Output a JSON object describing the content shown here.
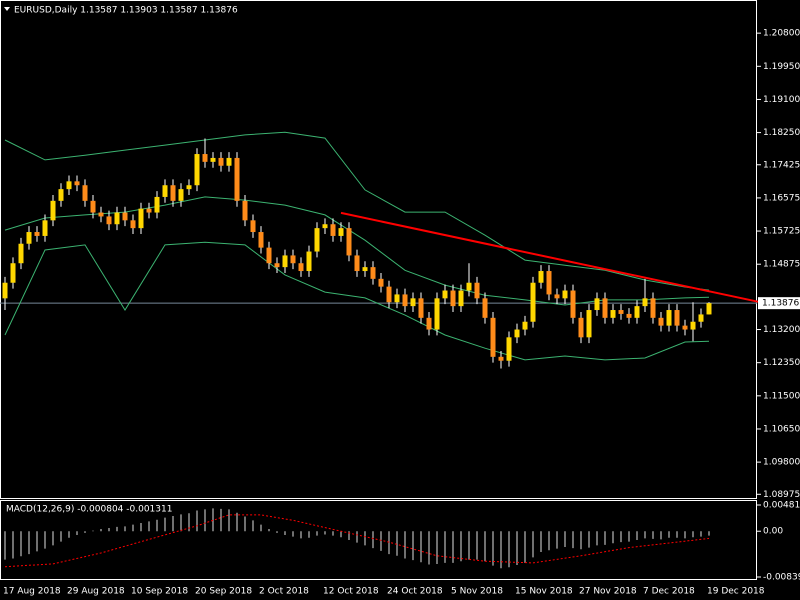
{
  "chart_data": {
    "type": "candlestick",
    "title": "EURUSD,Daily  1.13587 1.13903 1.13587 1.13876",
    "categories": [
      "17 Aug 2018",
      null,
      null,
      null,
      null,
      null,
      null,
      null,
      "29 Aug 2018",
      null,
      null,
      null,
      null,
      null,
      null,
      null,
      "10 Sep 2018",
      null,
      null,
      null,
      null,
      null,
      null,
      null,
      "20 Sep 2018",
      null,
      null,
      null,
      null,
      null,
      null,
      null,
      "2 Oct 2018",
      null,
      null,
      null,
      null,
      null,
      null,
      null,
      "12 Oct 2018",
      null,
      null,
      null,
      null,
      null,
      null,
      null,
      "24 Oct 2018",
      null,
      null,
      null,
      null,
      null,
      null,
      null,
      "5 Nov 2018",
      null,
      null,
      null,
      null,
      null,
      null,
      null,
      "15 Nov 2018",
      null,
      null,
      null,
      null,
      null,
      null,
      null,
      "27 Nov 2018",
      null,
      null,
      null,
      null,
      null,
      null,
      null,
      "7 Dec 2018",
      null,
      null,
      null,
      null,
      null,
      null,
      null,
      "19 Dec 2018"
    ],
    "open": [
      1.14,
      1.144,
      1.149,
      1.154,
      1.157,
      1.156,
      1.16,
      1.165,
      1.168,
      1.17,
      1.169,
      1.165,
      1.162,
      1.161,
      1.159,
      1.162,
      1.16,
      1.158,
      1.163,
      1.162,
      1.166,
      1.169,
      1.165,
      1.168,
      1.169,
      1.177,
      1.175,
      1.176,
      1.174,
      1.176,
      1.165,
      1.16,
      1.157,
      1.153,
      1.149,
      1.148,
      1.151,
      1.149,
      1.147,
      1.152,
      1.158,
      1.159,
      1.156,
      1.158,
      1.151,
      1.147,
      1.148,
      1.145,
      1.143,
      1.139,
      1.141,
      1.138,
      1.14,
      1.135,
      1.132,
      1.14,
      1.142,
      1.138,
      1.142,
      1.144,
      1.14,
      1.135,
      1.125,
      1.124,
      1.13,
      1.132,
      1.134,
      1.144,
      1.147,
      1.141,
      1.14,
      1.142,
      1.135,
      1.13,
      1.137,
      1.14,
      1.135,
      1.137,
      1.136,
      1.135,
      1.138,
      1.14,
      1.135,
      1.133,
      1.137,
      1.133,
      1.132,
      1.134,
      1.13587
    ],
    "high": [
      1.1455,
      1.1505,
      1.1555,
      1.1585,
      1.1585,
      1.1615,
      1.1665,
      1.1695,
      1.1715,
      1.1715,
      1.1705,
      1.1665,
      1.1635,
      1.1625,
      1.1635,
      1.1635,
      1.1615,
      1.1645,
      1.1645,
      1.1675,
      1.1705,
      1.1705,
      1.1695,
      1.1705,
      1.1785,
      1.181,
      1.1775,
      1.1775,
      1.1775,
      1.1775,
      1.1665,
      1.1615,
      1.1585,
      1.1545,
      1.1505,
      1.1525,
      1.1525,
      1.1505,
      1.1535,
      1.1595,
      1.1605,
      1.1605,
      1.1595,
      1.1595,
      1.1525,
      1.1495,
      1.1495,
      1.1465,
      1.1445,
      1.1425,
      1.1425,
      1.1415,
      1.1415,
      1.1365,
      1.1415,
      1.1435,
      1.1435,
      1.1435,
      1.149,
      1.1455,
      1.1415,
      1.1365,
      1.1265,
      1.1315,
      1.1335,
      1.1355,
      1.1455,
      1.1485,
      1.1485,
      1.1425,
      1.1435,
      1.1435,
      1.1365,
      1.1385,
      1.1415,
      1.1415,
      1.1385,
      1.1385,
      1.1375,
      1.1395,
      1.145,
      1.1415,
      1.1365,
      1.1385,
      1.1385,
      1.1345,
      1.139,
      1.1374,
      1.13903
    ],
    "low": [
      1.137,
      1.1425,
      1.1475,
      1.1525,
      1.1545,
      1.1545,
      1.1585,
      1.1635,
      1.1665,
      1.1675,
      1.1635,
      1.1605,
      1.1595,
      1.1575,
      1.1575,
      1.1585,
      1.1565,
      1.1565,
      1.1605,
      1.1605,
      1.1645,
      1.1635,
      1.1635,
      1.1665,
      1.1675,
      1.1735,
      1.1735,
      1.1725,
      1.1725,
      1.1635,
      1.1585,
      1.1555,
      1.1515,
      1.1475,
      1.1465,
      1.1465,
      1.1475,
      1.1455,
      1.1455,
      1.1505,
      1.1565,
      1.1545,
      1.1545,
      1.1495,
      1.1455,
      1.1455,
      1.1435,
      1.1415,
      1.1375,
      1.1375,
      1.1365,
      1.1365,
      1.1335,
      1.1305,
      1.1305,
      1.1385,
      1.1365,
      1.1365,
      1.1405,
      1.1385,
      1.1335,
      1.1235,
      1.122,
      1.1225,
      1.1285,
      1.1305,
      1.1325,
      1.1425,
      1.1395,
      1.1385,
      1.1385,
      1.1335,
      1.1285,
      1.1285,
      1.1355,
      1.1335,
      1.1335,
      1.1345,
      1.1335,
      1.1335,
      1.1365,
      1.1335,
      1.1315,
      1.1315,
      1.1315,
      1.1305,
      1.129,
      1.1325,
      1.13587
    ],
    "close": [
      1.144,
      1.149,
      1.154,
      1.157,
      1.156,
      1.16,
      1.165,
      1.168,
      1.17,
      1.169,
      1.165,
      1.162,
      1.161,
      1.159,
      1.162,
      1.16,
      1.158,
      1.163,
      1.162,
      1.166,
      1.169,
      1.165,
      1.168,
      1.169,
      1.177,
      1.175,
      1.176,
      1.174,
      1.176,
      1.165,
      1.16,
      1.157,
      1.153,
      1.149,
      1.148,
      1.151,
      1.149,
      1.147,
      1.152,
      1.158,
      1.159,
      1.156,
      1.158,
      1.151,
      1.147,
      1.148,
      1.145,
      1.143,
      1.139,
      1.141,
      1.138,
      1.14,
      1.135,
      1.132,
      1.14,
      1.142,
      1.138,
      1.142,
      1.144,
      1.14,
      1.135,
      1.125,
      1.124,
      1.13,
      1.132,
      1.134,
      1.144,
      1.147,
      1.141,
      1.14,
      1.142,
      1.135,
      1.13,
      1.137,
      1.14,
      1.135,
      1.137,
      1.136,
      1.135,
      1.138,
      1.14,
      1.135,
      1.133,
      1.137,
      1.133,
      1.132,
      1.134,
      1.13587,
      1.13876
    ],
    "bull_color": "#ffd700",
    "bear_color": "#ff8c1a",
    "wick_color": "#ffffff",
    "ylim": [
      1.0888,
      1.2165
    ],
    "yticks": [
      {
        "value": 1.208,
        "label": "1.20800"
      },
      {
        "value": 1.1995,
        "label": "1.19950"
      },
      {
        "value": 1.191,
        "label": "1.19100"
      },
      {
        "value": 1.1825,
        "label": "1.18250"
      },
      {
        "value": 1.17425,
        "label": "1.17425"
      },
      {
        "value": 1.16575,
        "label": "1.16575"
      },
      {
        "value": 1.15725,
        "label": "1.15725"
      },
      {
        "value": 1.14875,
        "label": "1.14875"
      },
      {
        "value": 1.132,
        "label": "1.13200"
      },
      {
        "value": 1.1235,
        "label": "1.12350"
      },
      {
        "value": 1.115,
        "label": "1.11500"
      },
      {
        "value": 1.1065,
        "label": "1.10650"
      },
      {
        "value": 1.098,
        "label": "1.09800"
      },
      {
        "value": 1.08975,
        "label": "1.08975"
      }
    ],
    "bands": {
      "color": "#3cb371",
      "x": [
        0,
        5,
        10,
        15,
        20,
        25,
        30,
        35,
        40,
        45,
        50,
        55,
        60,
        65,
        70,
        75,
        80,
        85,
        88
      ],
      "upper": [
        1.1806,
        1.1755,
        1.1767,
        1.178,
        1.1793,
        1.1806,
        1.1819,
        1.1826,
        1.1811,
        1.1678,
        1.1621,
        1.1621,
        1.1562,
        1.1498,
        1.1485,
        1.1472,
        1.1447,
        1.1429,
        1.1421
      ],
      "middle": [
        1.1575,
        1.1606,
        1.1614,
        1.1621,
        1.1639,
        1.166,
        1.1652,
        1.1639,
        1.1614,
        1.1549,
        1.1472,
        1.1434,
        1.1408,
        1.1396,
        1.1383,
        1.1396,
        1.1396,
        1.1401,
        1.1403
      ],
      "lower": [
        1.1306,
        1.1524,
        1.1537,
        1.137,
        1.1537,
        1.1544,
        1.1537,
        1.146,
        1.1416,
        1.1401,
        1.1357,
        1.1306,
        1.1272,
        1.1242,
        1.1252,
        1.1242,
        1.1247,
        1.1288,
        1.129
      ]
    },
    "trendline": {
      "color": "#ff0000",
      "x": [
        42,
        94.4
      ],
      "y": [
        1.1619,
        1.139
      ]
    },
    "bid": {
      "value": 1.13876,
      "label": "1.13876",
      "color": "#778899"
    },
    "macd": {
      "title": "MACD(12,26,9) -0.000804 -0.001311",
      "ylim": [
        -0.008395,
        0.00481
      ],
      "yticks": [
        0.00481,
        {
          "value": 0,
          "label": "0.00"
        },
        -0.008395
      ],
      "histogram": {
        "color": "#e0e0e0",
        "values": [
          -0.0052,
          -0.005,
          -0.0046,
          -0.0042,
          -0.0037,
          -0.0032,
          -0.0026,
          -0.0019,
          -0.0012,
          -0.0007,
          -0.0003,
          0.0001,
          0.0004,
          0.0006,
          0.0008,
          0.0009,
          0.0012,
          0.0015,
          0.0018,
          0.0021,
          0.0025,
          0.0028,
          0.0031,
          0.0033,
          0.0038,
          0.004,
          0.0042,
          0.0041,
          0.004,
          0.0034,
          0.0027,
          0.002,
          0.0012,
          0.0004,
          -0.0003,
          -0.0007,
          -0.001,
          -0.0013,
          -0.0012,
          -0.0008,
          -0.0006,
          -0.0008,
          -0.0011,
          -0.0016,
          -0.0021,
          -0.0026,
          -0.0031,
          -0.0036,
          -0.0042,
          -0.0045,
          -0.005,
          -0.0053,
          -0.0057,
          -0.0061,
          -0.006,
          -0.0058,
          -0.0058,
          -0.0055,
          -0.0052,
          -0.0052,
          -0.0055,
          -0.0063,
          -0.0068,
          -0.0066,
          -0.0062,
          -0.0058,
          -0.0048,
          -0.0038,
          -0.0035,
          -0.0032,
          -0.0029,
          -0.0031,
          -0.0033,
          -0.003,
          -0.0026,
          -0.0025,
          -0.0022,
          -0.002,
          -0.0019,
          -0.0016,
          -0.0013,
          -0.0014,
          -0.0015,
          -0.0012,
          -0.0012,
          -0.0013,
          -0.0011,
          -0.001,
          -0.000804
        ]
      },
      "signal": {
        "color": "#ff0000",
        "x": [
          0,
          6,
          12,
          18,
          24,
          28,
          32,
          36,
          42,
          48,
          54,
          60,
          66,
          72,
          78,
          84,
          88
        ],
        "values": [
          -0.0065,
          -0.006,
          -0.004,
          -0.0015,
          0.001,
          0.003,
          0.003,
          0.002,
          0.0,
          -0.002,
          -0.0045,
          -0.0055,
          -0.0058,
          -0.0045,
          -0.003,
          -0.002,
          -0.001311
        ]
      }
    }
  }
}
